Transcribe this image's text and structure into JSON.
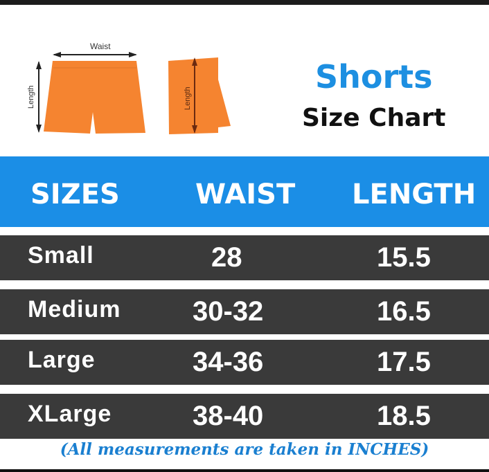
{
  "diagram": {
    "waist_label": "Waist",
    "length_label_front": "Length",
    "length_label_side": "Length",
    "shorts_color": "#f58430"
  },
  "title": {
    "line1": "Shorts",
    "line2": "Size Chart"
  },
  "table": {
    "headers": [
      "SIZES",
      "WAIST",
      "LENGTH"
    ],
    "rows": [
      [
        "Small",
        "28",
        "15.5"
      ],
      [
        "Medium",
        "30-32",
        "16.5"
      ],
      [
        "Large",
        "34-36",
        "17.5"
      ],
      [
        "XLarge",
        "38-40",
        "18.5"
      ]
    ]
  },
  "footnote": "(All measurements are taken in INCHES)",
  "colors": {
    "header_bg": "#1b8ee6",
    "row_bg": "#3a3a3a",
    "title_blue": "#1d8fe1"
  }
}
